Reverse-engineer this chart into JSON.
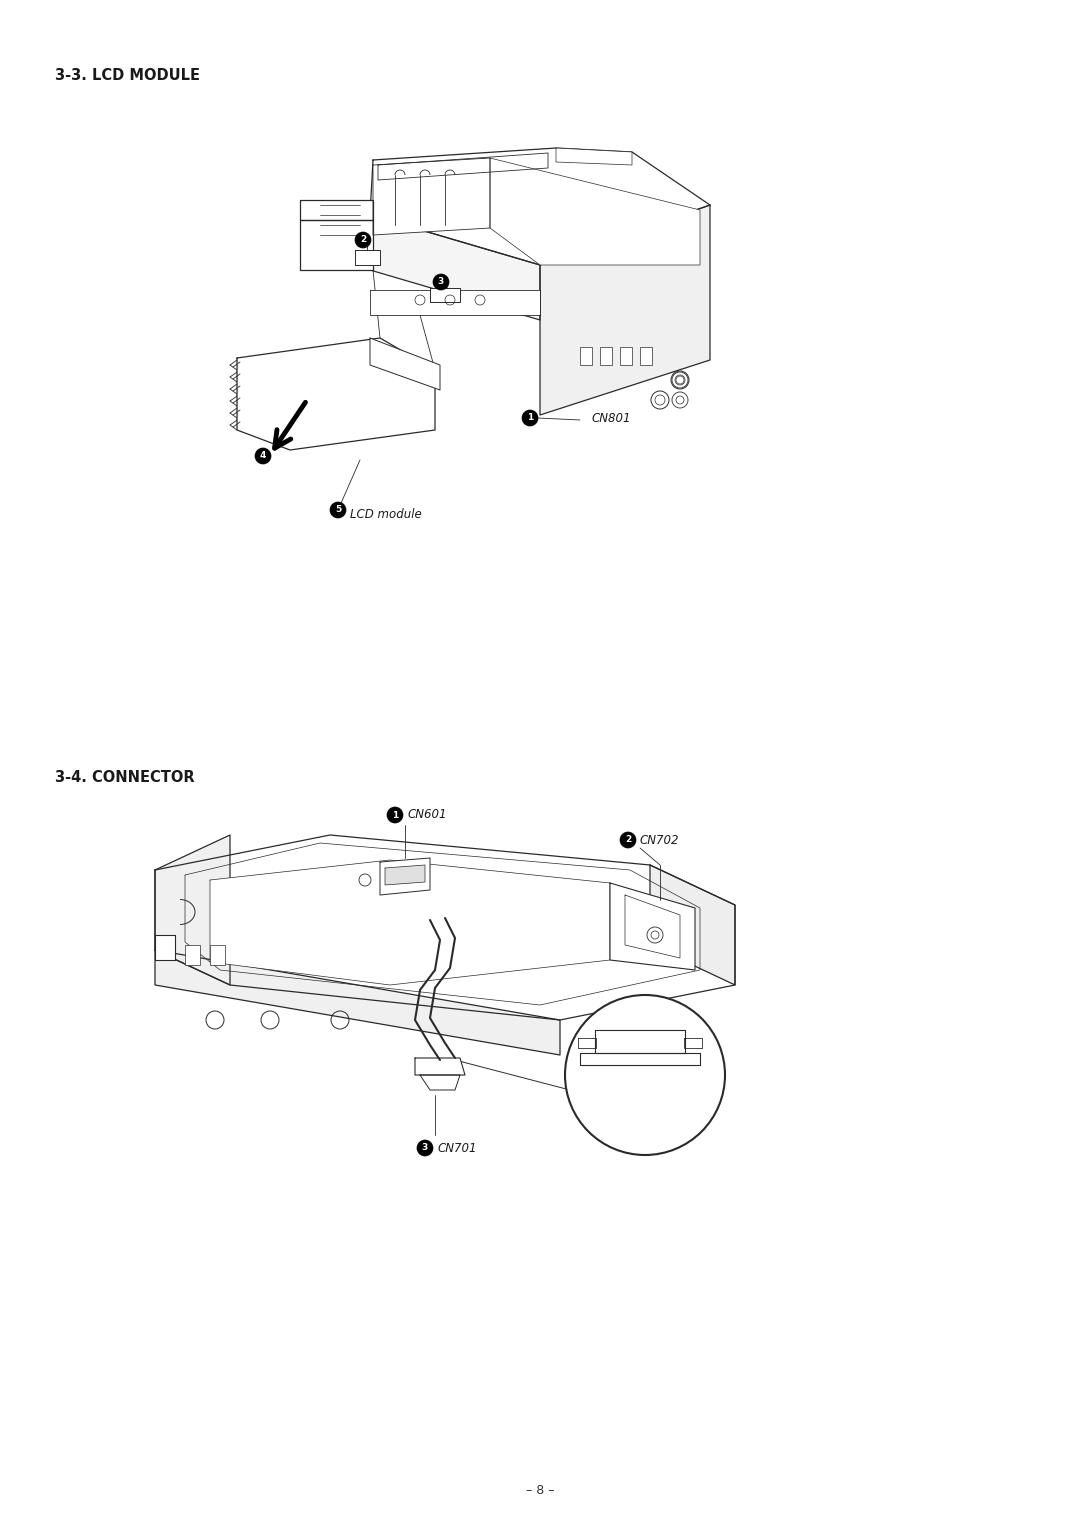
{
  "bg_color": "#ffffff",
  "section1_title": "3-3. LCD MODULE",
  "section2_title": "3-4. CONNECTOR",
  "footer_text": "– 8 –",
  "ec": "#2a2a2a",
  "lw_main": 0.9,
  "lw_thin": 0.6,
  "title_fontsize": 10.5,
  "label_fontsize": 8.5
}
